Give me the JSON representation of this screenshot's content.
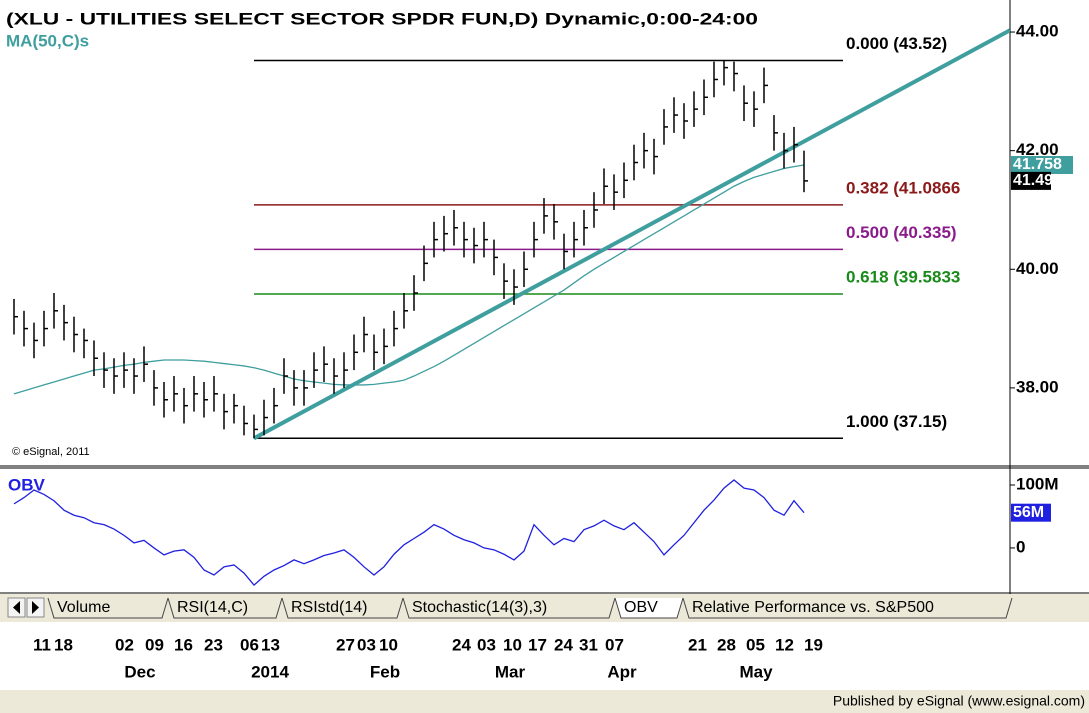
{
  "chart_data": [
    {
      "type": "ohlc",
      "title": "(XLU - UTILITIES SELECT SECTOR SPDR FUN,D) Dynamic,0:00-24:00",
      "color": "#000000",
      "ylim": [
        36.7,
        44.54
      ],
      "yticks": [
        {
          "value": 44,
          "label": "44.00"
        },
        {
          "value": 42,
          "label": "42.00"
        },
        {
          "value": 40,
          "label": "40.00"
        },
        {
          "value": 38,
          "label": "38.00"
        }
      ],
      "high": [
        39.5,
        39.3,
        39.1,
        39.3,
        39.6,
        39.4,
        39.2,
        39.0,
        38.8,
        38.6,
        38.5,
        38.6,
        38.5,
        38.7,
        38.3,
        38.1,
        38.2,
        38.0,
        38.2,
        38.1,
        38.2,
        37.9,
        37.9,
        37.7,
        37.55,
        37.8,
        38.0,
        38.5,
        38.3,
        38.3,
        38.6,
        38.7,
        38.5,
        38.6,
        38.9,
        39.2,
        38.9,
        39.0,
        39.3,
        39.6,
        39.9,
        40.4,
        40.8,
        40.9,
        41.0,
        40.8,
        40.7,
        40.8,
        40.5,
        40.1,
        40.0,
        40.3,
        40.8,
        41.2,
        41.1,
        40.6,
        40.8,
        41.0,
        41.3,
        41.7,
        41.6,
        41.8,
        42.1,
        42.3,
        42.2,
        42.7,
        42.9,
        42.8,
        43.0,
        43.2,
        43.5,
        43.52,
        43.5,
        43.1,
        43.0,
        43.4,
        42.6,
        42.3,
        42.4,
        42.0
      ],
      "low": [
        38.9,
        38.7,
        38.5,
        38.7,
        39.0,
        38.8,
        38.6,
        38.5,
        38.2,
        38.0,
        37.9,
        38.0,
        37.9,
        38.1,
        37.7,
        37.5,
        37.6,
        37.4,
        37.6,
        37.5,
        37.6,
        37.3,
        37.4,
        37.2,
        37.15,
        37.2,
        37.4,
        37.9,
        37.7,
        37.7,
        38.0,
        38.1,
        37.9,
        38.0,
        38.3,
        38.6,
        38.3,
        38.4,
        38.7,
        39.0,
        39.3,
        39.8,
        40.2,
        40.3,
        40.4,
        40.2,
        40.1,
        40.2,
        39.9,
        39.5,
        39.4,
        39.7,
        40.2,
        40.6,
        40.5,
        40.0,
        40.2,
        40.4,
        40.7,
        41.1,
        41.0,
        41.2,
        41.5,
        41.7,
        41.6,
        42.1,
        42.3,
        42.2,
        42.4,
        42.6,
        42.9,
        43.1,
        43.0,
        42.5,
        42.4,
        42.8,
        42.0,
        41.7,
        41.8,
        41.3
      ],
      "close": [
        39.2,
        39.0,
        38.8,
        39.0,
        39.3,
        39.1,
        38.9,
        38.8,
        38.5,
        38.3,
        38.2,
        38.3,
        38.2,
        38.4,
        38.0,
        37.8,
        37.9,
        37.7,
        37.9,
        37.8,
        37.9,
        37.6,
        37.7,
        37.4,
        37.3,
        37.5,
        37.7,
        38.2,
        38.0,
        38.0,
        38.3,
        38.4,
        38.2,
        38.3,
        38.6,
        38.9,
        38.6,
        38.7,
        39.0,
        39.3,
        39.6,
        40.1,
        40.5,
        40.6,
        40.7,
        40.5,
        40.4,
        40.5,
        40.2,
        39.8,
        39.7,
        40.0,
        40.5,
        40.9,
        40.8,
        40.3,
        40.5,
        40.7,
        41.0,
        41.4,
        41.3,
        41.5,
        41.8,
        42.0,
        41.9,
        42.4,
        42.6,
        42.5,
        42.7,
        42.9,
        43.2,
        43.4,
        43.3,
        42.8,
        42.7,
        43.1,
        42.3,
        42.0,
        42.1,
        41.49
      ],
      "series": [
        {
          "name": "MA(50,C)s",
          "color": "#3f9e9e",
          "values": [
            37.9,
            37.95,
            38.0,
            38.05,
            38.1,
            38.15,
            38.2,
            38.25,
            38.3,
            38.32,
            38.35,
            38.38,
            38.4,
            38.43,
            38.45,
            38.47,
            38.47,
            38.47,
            38.46,
            38.45,
            38.43,
            38.41,
            38.39,
            38.37,
            38.34,
            38.3,
            38.25,
            38.2,
            38.15,
            38.12,
            38.1,
            38.08,
            38.06,
            38.05,
            38.05,
            38.05,
            38.06,
            38.08,
            38.1,
            38.13,
            38.2,
            38.28,
            38.36,
            38.45,
            38.55,
            38.65,
            38.75,
            38.85,
            38.95,
            39.05,
            39.15,
            39.25,
            39.35,
            39.45,
            39.55,
            39.65,
            39.77,
            39.89,
            40.0,
            40.1,
            40.2,
            40.3,
            40.4,
            40.5,
            40.6,
            40.7,
            40.8,
            40.9,
            41.0,
            41.1,
            41.2,
            41.3,
            41.4,
            41.48,
            41.55,
            41.6,
            41.65,
            41.7,
            41.73,
            41.758
          ]
        }
      ],
      "trendline": {
        "color": "#3f9e9e",
        "values": [
          37.15,
          44.03
        ]
      },
      "fibonacci": [
        {
          "label": "0.000 (43.52)",
          "value": 43.52,
          "color": "#000000"
        },
        {
          "label": "0.382 (41.0866",
          "value": 41.0866,
          "color": "#8b1a1a"
        },
        {
          "label": "0.500 (40.335)",
          "value": 40.335,
          "color": "#8b1a8b"
        },
        {
          "label": "0.618 (39.5833",
          "value": 39.5833,
          "color": "#1a8b1a"
        },
        {
          "label": "1.000 (37.15)",
          "value": 37.15,
          "color": "#000000"
        }
      ],
      "annotation": "© eSignal, 2011"
    },
    {
      "type": "line",
      "title": "OBV",
      "color": "#2020e0",
      "ylim": [
        -70,
        127
      ],
      "yticks": [
        {
          "value": 100,
          "label": "100M"
        },
        0
      ],
      "values": [
        70,
        80,
        92,
        85,
        75,
        60,
        52,
        48,
        40,
        37,
        30,
        20,
        8,
        12,
        0,
        -11,
        -5,
        -3,
        -15,
        -35,
        -43,
        -30,
        -27,
        -40,
        -59,
        -45,
        -35,
        -28,
        -19,
        -25,
        -19,
        -12,
        -8,
        -3,
        -15,
        -30,
        -43,
        -30,
        -10,
        5,
        15,
        25,
        37,
        30,
        20,
        13,
        8,
        0,
        -3,
        -10,
        -19,
        -5,
        37,
        20,
        5,
        15,
        10,
        29,
        35,
        44,
        35,
        29,
        40,
        25,
        10,
        -11,
        5,
        20,
        40,
        60,
        76,
        95,
        108,
        95,
        92,
        80,
        60,
        52,
        75,
        56
      ],
      "last_value_label": "56M"
    }
  ],
  "tabs": [
    "Volume",
    "RSI(14,C)",
    "RSIstd(14)",
    "Stochastic(14(3),3)",
    "OBV",
    "Relative Performance vs. S&P500"
  ],
  "date_labels": {
    "days": [
      "11",
      "18",
      "02",
      "09",
      "16",
      "23",
      "06",
      "13",
      "27",
      "03",
      "10",
      "24",
      "03",
      "10",
      "17",
      "24",
      "31",
      "07",
      "21",
      "28",
      "05",
      "12",
      "19"
    ],
    "months": [
      "Dec",
      "2014",
      "Feb",
      "Mar",
      "Apr",
      "May"
    ]
  },
  "footer": "Published by eSignal (www.esignal.com)"
}
